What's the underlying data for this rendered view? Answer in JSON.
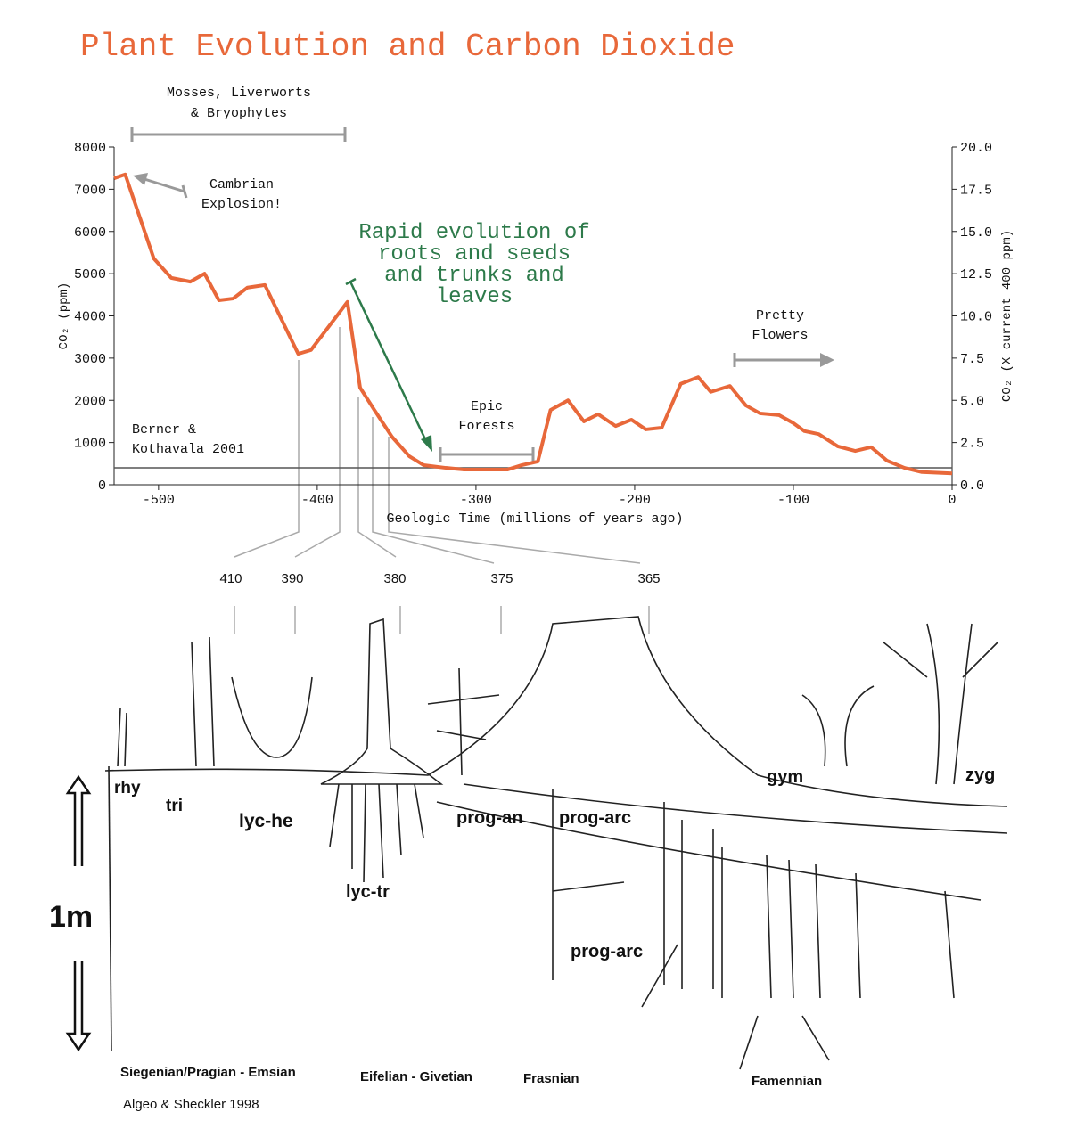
{
  "chart_data": {
    "type": "line",
    "title": "Plant Evolution and Carbon Dioxide",
    "x_label": "Geologic Time (millions of years ago)",
    "y_label": "CO₂ (ppm)",
    "y2_label": "CO₂ (X current 400 ppm)",
    "xlim": [
      -528,
      0
    ],
    "xticks": [
      -500,
      -400,
      -300,
      -200,
      -100,
      0
    ],
    "ylim": [
      0,
      8000
    ],
    "yticks": [
      0,
      1000,
      2000,
      3000,
      4000,
      5000,
      6000,
      7000,
      8000
    ],
    "y2lim": [
      0,
      20
    ],
    "y2ticks": [
      {
        "value": 0,
        "label": "0.0"
      },
      2.5,
      {
        "value": 5,
        "label": "5.0"
      },
      7.5,
      {
        "value": 10,
        "label": "10.0"
      },
      12.5,
      {
        "value": 15,
        "label": "15.0"
      },
      17.5,
      {
        "value": 20,
        "label": "20.0"
      }
    ],
    "baseline_ppm": 400,
    "x": [
      -528,
      -521,
      -503,
      -492,
      -480,
      -471,
      -462,
      -453,
      -444,
      -433,
      -412,
      -404,
      -381,
      -373,
      -364,
      -353,
      -342,
      -333,
      -319,
      -308,
      -280,
      -271,
      -261,
      -253,
      -242,
      -232,
      -223,
      -212,
      -202,
      -193,
      -183,
      -171,
      -160,
      -152,
      -140,
      -130,
      -121,
      -109,
      -100,
      -93,
      -84,
      -72,
      -61,
      -51,
      -41,
      -30,
      -19,
      0
    ],
    "series": [
      {
        "color": "#e8683a",
        "values": [
          7260,
          7350,
          5360,
          4900,
          4810,
          5000,
          4370,
          4410,
          4670,
          4730,
          3100,
          3190,
          4330,
          2300,
          1770,
          1140,
          675,
          465,
          400,
          360,
          360,
          465,
          550,
          1770,
          2000,
          1500,
          1670,
          1390,
          1540,
          1310,
          1350,
          2390,
          2550,
          2200,
          2340,
          1880,
          1690,
          1650,
          1460,
          1270,
          1200,
          910,
          800,
          890,
          570,
          400,
          300,
          270
        ]
      }
    ],
    "annotations": {
      "mosses": [
        "Mosses, Liverworts",
        "& Bryophytes"
      ],
      "cambrian": [
        "Cambrian",
        "Explosion!"
      ],
      "rapid": [
        "Rapid evolution of",
        "roots and seeds",
        "and trunks and",
        "leaves"
      ],
      "epic": [
        "Epic",
        "Forests"
      ],
      "flowers": [
        "Pretty",
        "Flowers"
      ],
      "source": [
        "Berner &",
        "Kothavala 2001"
      ]
    }
  },
  "illustration": {
    "ages": [
      410,
      390,
      380,
      375,
      365
    ],
    "labels": [
      "rhy",
      "tri",
      "lyc-he",
      "lyc-tr",
      "prog-an",
      "prog-arc",
      "prog-arc",
      "gym",
      "zyg"
    ],
    "scale": "1m",
    "periods": [
      "Siegenian/Pragian - Emsian",
      "Eifelian - Givetian",
      "Frasnian",
      "Famennian"
    ],
    "source": "Algeo & Sheckler 1998"
  }
}
